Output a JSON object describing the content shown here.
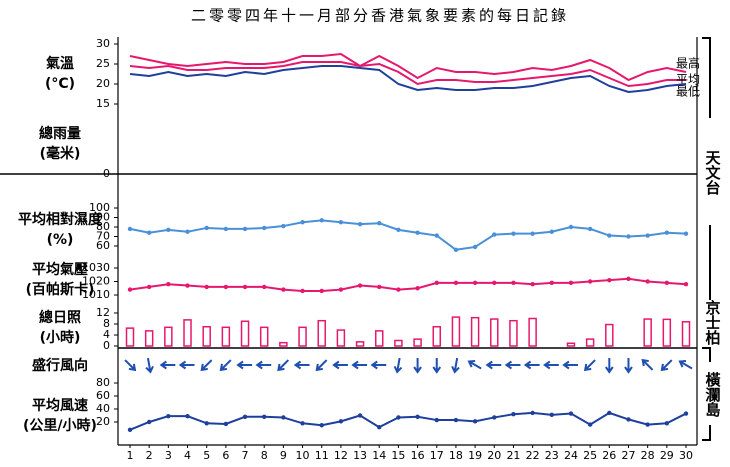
{
  "title": "二零零四年十一月部分香港氣象要素的每日記錄",
  "stations": [
    "天文台",
    "京士柏",
    "橫瀾島"
  ],
  "chart_data": [
    {
      "type": "line",
      "label": [
        "氣溫",
        "(°C)"
      ],
      "ylim": [
        14,
        31
      ],
      "yticks": [
        15,
        20,
        25,
        30
      ],
      "series": [
        {
          "name": "最高",
          "color": "#e6186e",
          "values": [
            27,
            26,
            25,
            24.5,
            25,
            25.5,
            25,
            25,
            25.5,
            27,
            27,
            27.5,
            24.5,
            27,
            24.5,
            21.5,
            24,
            23,
            23,
            22.5,
            23,
            24,
            23.5,
            24.5,
            26,
            24,
            21,
            23,
            24,
            23
          ]
        },
        {
          "name": "平均",
          "color": "#e6186e",
          "values": [
            24.5,
            24,
            24.5,
            23.5,
            23.5,
            24,
            24,
            24,
            24.5,
            25.5,
            25.5,
            25.5,
            24.5,
            25,
            23,
            20,
            21,
            21,
            20.5,
            20.5,
            21,
            21.5,
            22,
            22.5,
            23.5,
            21.5,
            19.5,
            20,
            21,
            21
          ]
        },
        {
          "name": "最低",
          "color": "#1f3f9c",
          "values": [
            22.5,
            22,
            23,
            22,
            22.5,
            22,
            23,
            22.5,
            23.5,
            24,
            24.5,
            24.5,
            24,
            23.5,
            20,
            18.5,
            19,
            18.5,
            18.5,
            19,
            19,
            19.5,
            20.5,
            21.5,
            22,
            19.5,
            18,
            18.5,
            19.5,
            20
          ]
        }
      ]
    },
    {
      "type": "line",
      "label": [
        "總雨量",
        "(毫米)"
      ],
      "ylim": [
        0,
        50
      ],
      "yticks": [
        0
      ],
      "series": []
    },
    {
      "type": "line",
      "label": [
        "平均相對濕度",
        "(%)"
      ],
      "ylim": [
        40,
        100
      ],
      "yticks": [
        60,
        70,
        80,
        90,
        100
      ],
      "markers": true,
      "series": [
        {
          "color": "#4a90d9",
          "values": [
            78,
            74,
            77,
            75,
            79,
            78,
            78,
            79,
            81,
            85,
            87,
            85,
            83,
            84,
            77,
            74,
            71,
            56,
            59,
            72,
            73,
            73,
            75,
            80,
            78,
            71,
            70,
            71,
            74,
            73
          ]
        }
      ]
    },
    {
      "type": "line",
      "label": [
        "平均氣壓",
        "(百帕斯卡)"
      ],
      "ylim": [
        1005,
        1035
      ],
      "yticks": [
        1010,
        1020,
        1030
      ],
      "markers": true,
      "series": [
        {
          "color": "#e6186e",
          "values": [
            1014,
            1016,
            1018,
            1017,
            1016,
            1016,
            1016,
            1016,
            1014,
            1013,
            1013,
            1014,
            1017,
            1016,
            1014,
            1015,
            1019,
            1019,
            1019,
            1019,
            1019,
            1018,
            1019,
            1019,
            1020,
            1021,
            1022,
            1020,
            1019,
            1018
          ]
        }
      ]
    },
    {
      "type": "bar",
      "label": [
        "總日照",
        "(小時)"
      ],
      "ylim": [
        0,
        13
      ],
      "yticks": [
        0,
        4,
        8,
        12
      ],
      "color": "#e6186e",
      "values": [
        6.5,
        5.5,
        6.8,
        9.5,
        7,
        6.8,
        9,
        6.8,
        1.2,
        6.8,
        9.2,
        5.8,
        1.5,
        5.5,
        2,
        2.5,
        7,
        10.5,
        10.3,
        9.8,
        9.2,
        10,
        0,
        1,
        2.5,
        7.8,
        0,
        9.8,
        9.7,
        8.8
      ]
    },
    {
      "type": "arrow",
      "label": [
        "盛行風向"
      ],
      "color": "#1f4fb0",
      "values": [
        315,
        350,
        90,
        90,
        45,
        45,
        90,
        90,
        45,
        90,
        45,
        90,
        90,
        90,
        10,
        0,
        0,
        10,
        120,
        90,
        90,
        90,
        90,
        90,
        45,
        0,
        0,
        135,
        45,
        120
      ]
    },
    {
      "type": "line",
      "label": [
        "平均風速",
        "(公里/小時)"
      ],
      "ylim": [
        0,
        100
      ],
      "yticks": [
        20,
        40,
        60,
        80
      ],
      "markers": true,
      "series": [
        {
          "color": "#1f3f9c",
          "values": [
            8,
            20,
            29,
            29,
            18,
            17,
            28,
            28,
            27,
            18,
            15,
            21,
            30,
            12,
            27,
            28,
            23,
            23,
            21,
            27,
            32,
            34,
            31,
            33,
            16,
            34,
            24,
            16,
            18,
            33
          ]
        }
      ],
      "categories": [
        1,
        2,
        3,
        4,
        5,
        6,
        7,
        8,
        9,
        10,
        11,
        12,
        13,
        14,
        15,
        16,
        17,
        18,
        19,
        20,
        21,
        22,
        23,
        24,
        25,
        26,
        27,
        28,
        29,
        30
      ]
    }
  ]
}
